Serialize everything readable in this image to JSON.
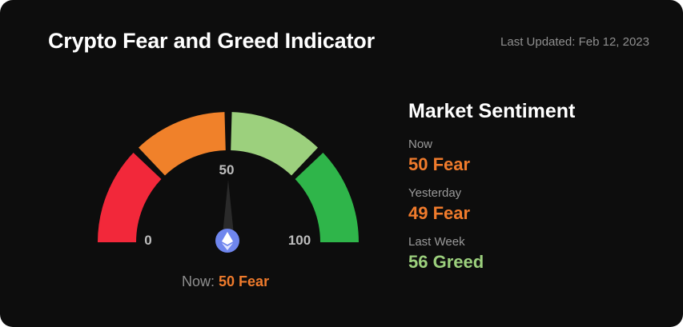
{
  "header": {
    "title": "Crypto Fear and Greed Indicator",
    "last_updated": "Last Updated: Feb 12, 2023"
  },
  "gauge": {
    "value": 50,
    "min_label": "0",
    "mid_label": "50",
    "max_label": "100",
    "needle_label": "50",
    "segments": [
      {
        "color": "#f2283a"
      },
      {
        "color": "#f0812a"
      },
      {
        "color": "#9cd07d"
      },
      {
        "color": "#2fb54a"
      }
    ],
    "coin_icon": "ethereum-icon",
    "caption_prefix": "Now:",
    "caption_value": "50 Fear"
  },
  "sentiment": {
    "title": "Market Sentiment",
    "items": [
      {
        "label": "Now",
        "value": "50 Fear",
        "kind": "fear"
      },
      {
        "label": "Yesterday",
        "value": "49 Fear",
        "kind": "fear"
      },
      {
        "label": "Last Week",
        "value": "56 Greed",
        "kind": "greed"
      }
    ]
  }
}
